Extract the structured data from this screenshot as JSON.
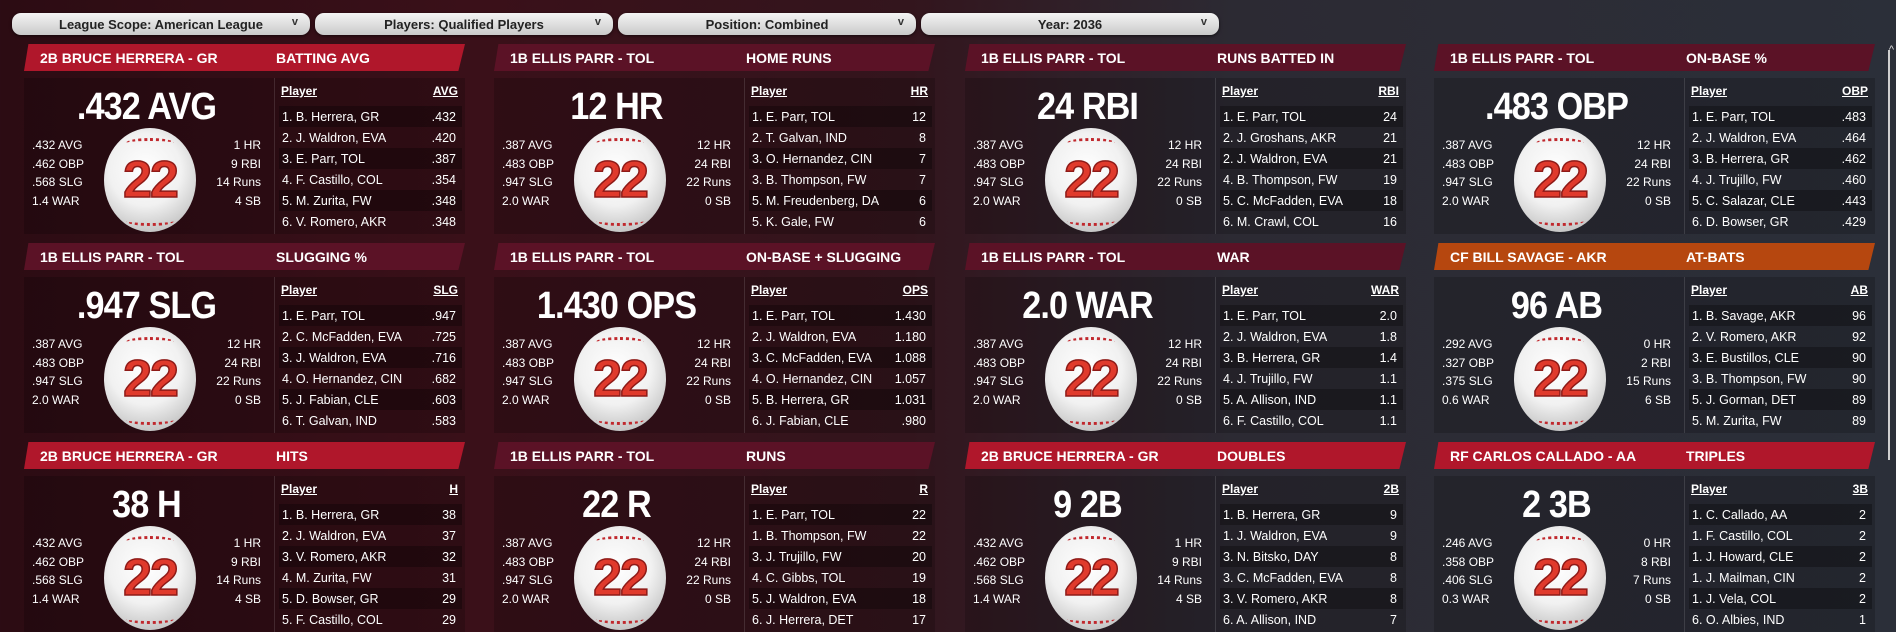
{
  "filters": [
    {
      "label": "League Scope: American League"
    },
    {
      "label": "Players: Qualified Players"
    },
    {
      "label": "Position: Combined"
    },
    {
      "label": "Year: 2036"
    }
  ],
  "colors": {
    "highlight": "#b0172b",
    "default": "#5b1226",
    "orange": "#b6470f"
  },
  "cards": [
    {
      "player": "2B BRUCE HERRERA - GR",
      "category": "BATTING AVG",
      "style": "highlight",
      "big": ".432 AVG",
      "left": [
        ".432 AVG",
        ".462 OBP",
        ".568 SLG",
        "1.4 WAR"
      ],
      "right": [
        "1 HR",
        "9 RBI",
        "14 Runs",
        "4 SB"
      ],
      "number": "22",
      "col_player": "Player",
      "col_stat": "AVG",
      "rows": [
        [
          "1. B. Herrera, GR",
          ".432"
        ],
        [
          "2. J. Waldron, EVA",
          ".420"
        ],
        [
          "3. E. Parr, TOL",
          ".387"
        ],
        [
          "4. F. Castillo, COL",
          ".354"
        ],
        [
          "5. M. Zurita, FW",
          ".348"
        ],
        [
          "6. V. Romero, AKR",
          ".348"
        ]
      ]
    },
    {
      "player": "1B ELLIS PARR - TOL",
      "category": "HOME RUNS",
      "style": "default",
      "big": "12 HR",
      "left": [
        ".387 AVG",
        ".483 OBP",
        ".947 SLG",
        "2.0 WAR"
      ],
      "right": [
        "12 HR",
        "24 RBI",
        "22 Runs",
        "0 SB"
      ],
      "number": "22",
      "col_player": "Player",
      "col_stat": "HR",
      "rows": [
        [
          "1. E. Parr, TOL",
          "12"
        ],
        [
          "2. T. Galvan, IND",
          "8"
        ],
        [
          "3. O. Hernandez, CIN",
          "7"
        ],
        [
          "3. B. Thompson, FW",
          "7"
        ],
        [
          "5. M. Freudenberg, DA",
          "6"
        ],
        [
          "5. K. Gale, FW",
          "6"
        ]
      ]
    },
    {
      "player": "1B ELLIS PARR - TOL",
      "category": "RUNS BATTED IN",
      "style": "default",
      "big": "24 RBI",
      "left": [
        ".387 AVG",
        ".483 OBP",
        ".947 SLG",
        "2.0 WAR"
      ],
      "right": [
        "12 HR",
        "24 RBI",
        "22 Runs",
        "0 SB"
      ],
      "number": "22",
      "col_player": "Player",
      "col_stat": "RBI",
      "rows": [
        [
          "1. E. Parr, TOL",
          "24"
        ],
        [
          "2. J. Groshans, AKR",
          "21"
        ],
        [
          "2. J. Waldron, EVA",
          "21"
        ],
        [
          "4. B. Thompson, FW",
          "19"
        ],
        [
          "5. C. McFadden, EVA",
          "18"
        ],
        [
          "6. M. Crawl, COL",
          "16"
        ]
      ]
    },
    {
      "player": "1B ELLIS PARR - TOL",
      "category": "ON-BASE %",
      "style": "default",
      "big": ".483 OBP",
      "left": [
        ".387 AVG",
        ".483 OBP",
        ".947 SLG",
        "2.0 WAR"
      ],
      "right": [
        "12 HR",
        "24 RBI",
        "22 Runs",
        "0 SB"
      ],
      "number": "22",
      "col_player": "Player",
      "col_stat": "OBP",
      "rows": [
        [
          "1. E. Parr, TOL",
          ".483"
        ],
        [
          "2. J. Waldron, EVA",
          ".464"
        ],
        [
          "3. B. Herrera, GR",
          ".462"
        ],
        [
          "4. J. Trujillo, FW",
          ".460"
        ],
        [
          "5. C. Salazar, CLE",
          ".443"
        ],
        [
          "6. D. Bowser, GR",
          ".429"
        ]
      ]
    },
    {
      "player": "1B ELLIS PARR - TOL",
      "category": "SLUGGING %",
      "style": "default",
      "big": ".947 SLG",
      "left": [
        ".387 AVG",
        ".483 OBP",
        ".947 SLG",
        "2.0 WAR"
      ],
      "right": [
        "12 HR",
        "24 RBI",
        "22 Runs",
        "0 SB"
      ],
      "number": "22",
      "col_player": "Player",
      "col_stat": "SLG",
      "rows": [
        [
          "1. E. Parr, TOL",
          ".947"
        ],
        [
          "2. C. McFadden, EVA",
          ".725"
        ],
        [
          "3. J. Waldron, EVA",
          ".716"
        ],
        [
          "4. O. Hernandez, CIN",
          ".682"
        ],
        [
          "5. J. Fabian, CLE",
          ".603"
        ],
        [
          "6. T. Galvan, IND",
          ".583"
        ]
      ]
    },
    {
      "player": "1B ELLIS PARR - TOL",
      "category": "ON-BASE + SLUGGING",
      "style": "default",
      "big": "1.430 OPS",
      "left": [
        ".387 AVG",
        ".483 OBP",
        ".947 SLG",
        "2.0 WAR"
      ],
      "right": [
        "12 HR",
        "24 RBI",
        "22 Runs",
        "0 SB"
      ],
      "number": "22",
      "col_player": "Player",
      "col_stat": "OPS",
      "rows": [
        [
          "1. E. Parr, TOL",
          "1.430"
        ],
        [
          "2. J. Waldron, EVA",
          "1.180"
        ],
        [
          "3. C. McFadden, EVA",
          "1.088"
        ],
        [
          "4. O. Hernandez, CIN",
          "1.057"
        ],
        [
          "5. B. Herrera, GR",
          "1.031"
        ],
        [
          "6. J. Fabian, CLE",
          ".980"
        ]
      ]
    },
    {
      "player": "1B ELLIS PARR - TOL",
      "category": "WAR",
      "style": "default",
      "big": "2.0 WAR",
      "left": [
        ".387 AVG",
        ".483 OBP",
        ".947 SLG",
        "2.0 WAR"
      ],
      "right": [
        "12 HR",
        "24 RBI",
        "22 Runs",
        "0 SB"
      ],
      "number": "22",
      "col_player": "Player",
      "col_stat": "WAR",
      "rows": [
        [
          "1. E. Parr, TOL",
          "2.0"
        ],
        [
          "2. J. Waldron, EVA",
          "1.8"
        ],
        [
          "3. B. Herrera, GR",
          "1.4"
        ],
        [
          "4. J. Trujillo, FW",
          "1.1"
        ],
        [
          "5. A. Allison, IND",
          "1.1"
        ],
        [
          "6. F. Castillo, COL",
          "1.1"
        ]
      ]
    },
    {
      "player": "CF BILL SAVAGE - AKR",
      "category": "AT-BATS",
      "style": "orange",
      "big": "96 AB",
      "left": [
        ".292 AVG",
        ".327 OBP",
        ".375 SLG",
        "0.6 WAR"
      ],
      "right": [
        "0 HR",
        "2 RBI",
        "15 Runs",
        "6 SB"
      ],
      "number": "22",
      "col_player": "Player",
      "col_stat": "AB",
      "rows": [
        [
          "1. B. Savage, AKR",
          "96"
        ],
        [
          "2. V. Romero, AKR",
          "92"
        ],
        [
          "3. E. Bustillos, CLE",
          "90"
        ],
        [
          "3. B. Thompson, FW",
          "90"
        ],
        [
          "5. J. Gorman, DET",
          "89"
        ],
        [
          "5. M. Zurita, FW",
          "89"
        ]
      ]
    },
    {
      "player": "2B BRUCE HERRERA - GR",
      "category": "HITS",
      "style": "highlight",
      "big": "38 H",
      "left": [
        ".432 AVG",
        ".462 OBP",
        ".568 SLG",
        "1.4 WAR"
      ],
      "right": [
        "1 HR",
        "9 RBI",
        "14 Runs",
        "4 SB"
      ],
      "number": "22",
      "col_player": "Player",
      "col_stat": "H",
      "rows": [
        [
          "1. B. Herrera, GR",
          "38"
        ],
        [
          "2. J. Waldron, EVA",
          "37"
        ],
        [
          "3. V. Romero, AKR",
          "32"
        ],
        [
          "4. M. Zurita, FW",
          "31"
        ],
        [
          "5. D. Bowser, GR",
          "29"
        ],
        [
          "5. F. Castillo, COL",
          "29"
        ]
      ]
    },
    {
      "player": "1B ELLIS PARR - TOL",
      "category": "RUNS",
      "style": "default",
      "big": "22 R",
      "left": [
        ".387 AVG",
        ".483 OBP",
        ".947 SLG",
        "2.0 WAR"
      ],
      "right": [
        "12 HR",
        "24 RBI",
        "22 Runs",
        "0 SB"
      ],
      "number": "22",
      "col_player": "Player",
      "col_stat": "R",
      "rows": [
        [
          "1. E. Parr, TOL",
          "22"
        ],
        [
          "1. B. Thompson, FW",
          "22"
        ],
        [
          "3. J. Trujillo, FW",
          "20"
        ],
        [
          "4. C. Gibbs, TOL",
          "19"
        ],
        [
          "5. J. Waldron, EVA",
          "18"
        ],
        [
          "6. J. Herrera, DET",
          "17"
        ]
      ]
    },
    {
      "player": "2B BRUCE HERRERA - GR",
      "category": "DOUBLES",
      "style": "highlight",
      "big": "9 2B",
      "left": [
        ".432 AVG",
        ".462 OBP",
        ".568 SLG",
        "1.4 WAR"
      ],
      "right": [
        "1 HR",
        "9 RBI",
        "14 Runs",
        "4 SB"
      ],
      "number": "22",
      "col_player": "Player",
      "col_stat": "2B",
      "rows": [
        [
          "1. B. Herrera, GR",
          "9"
        ],
        [
          "1. J. Waldron, EVA",
          "9"
        ],
        [
          "3. N. Bitsko, DAY",
          "8"
        ],
        [
          "3. C. McFadden, EVA",
          "8"
        ],
        [
          "3. V. Romero, AKR",
          "8"
        ],
        [
          "6. A. Allison, IND",
          "7"
        ]
      ]
    },
    {
      "player": "RF CARLOS CALLADO - AA",
      "category": "TRIPLES",
      "style": "highlight",
      "big": "2 3B",
      "left": [
        ".246 AVG",
        ".358 OBP",
        ".406 SLG",
        "0.3 WAR"
      ],
      "right": [
        "0 HR",
        "8 RBI",
        "7 Runs",
        "0 SB"
      ],
      "number": "22",
      "col_player": "Player",
      "col_stat": "3B",
      "rows": [
        [
          "1. C. Callado, AA",
          "2"
        ],
        [
          "1. F. Castillo, COL",
          "2"
        ],
        [
          "1. J. Howard, CLE",
          "2"
        ],
        [
          "1. J. Mailman, CIN",
          "2"
        ],
        [
          "1. J. Vela, COL",
          "2"
        ],
        [
          "6. O. Albies, IND",
          "1"
        ]
      ]
    }
  ]
}
